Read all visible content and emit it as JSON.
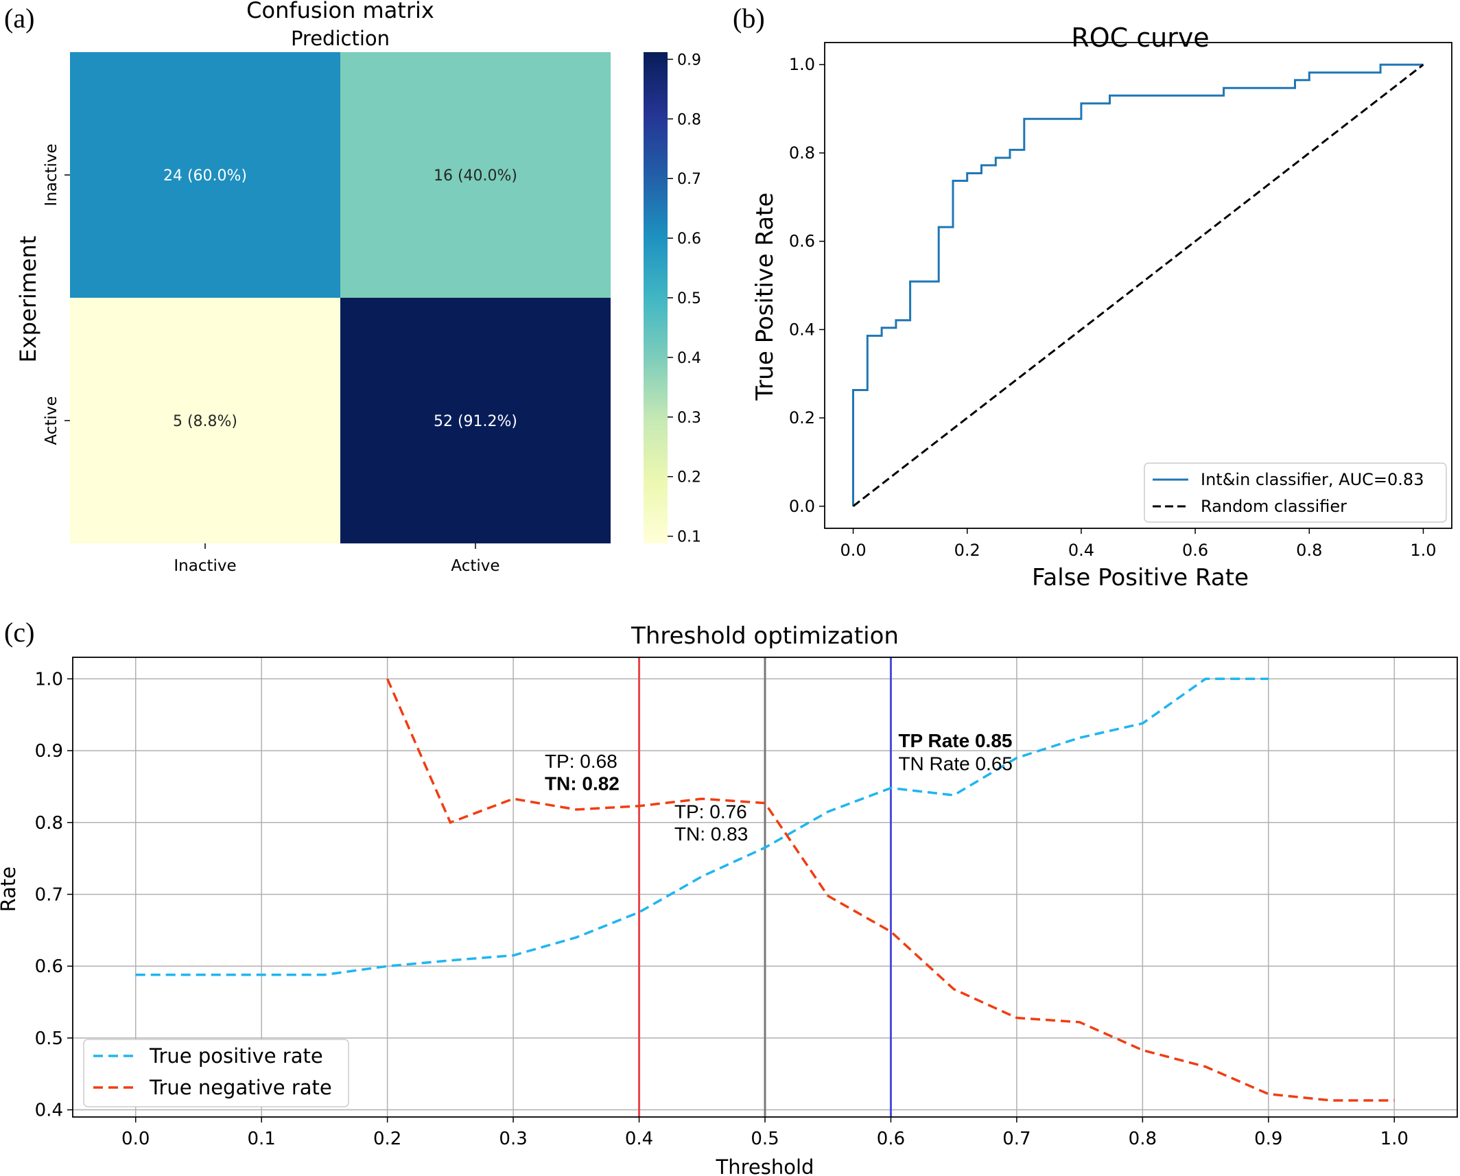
{
  "chart_data": [
    {
      "panel": "(a)",
      "type": "heatmap",
      "title": "Confusion matrix",
      "xlabel": "Prediction",
      "ylabel": "Experiment",
      "x_ticks": [
        "Inactive",
        "Active"
      ],
      "y_ticks": [
        "Inactive",
        "Active"
      ],
      "cells": [
        {
          "row": 0,
          "col": 0,
          "count": 24,
          "label": "24 (60.0%)",
          "value": 0.6,
          "color": "#1e8fbe",
          "text_color": "#ffffff"
        },
        {
          "row": 0,
          "col": 1,
          "count": 16,
          "label": "16 (40.0%)",
          "value": 0.4,
          "color": "#7ccdbb",
          "text_color": "#262626"
        },
        {
          "row": 1,
          "col": 0,
          "count": 5,
          "label": "5 (8.8%)",
          "value": 0.088,
          "color": "#ffffd9",
          "text_color": "#262626"
        },
        {
          "row": 1,
          "col": 1,
          "count": 52,
          "label": "52 (91.2%)",
          "value": 0.912,
          "color": "#081d58",
          "text_color": "#ffffff"
        }
      ],
      "colorbar": {
        "range": [
          0.088,
          0.912
        ],
        "ticks": [
          "0.1",
          "0.2",
          "0.3",
          "0.4",
          "0.5",
          "0.6",
          "0.7",
          "0.8",
          "0.9"
        ],
        "colormap": "YlGnBu",
        "stops": [
          "#ffffd9",
          "#edf8b1",
          "#c7e9b4",
          "#7fcdbb",
          "#41b6c4",
          "#1d91c0",
          "#225ea8",
          "#253494",
          "#081d58"
        ]
      }
    },
    {
      "panel": "(b)",
      "type": "line",
      "title": "ROC curve",
      "xlabel": "False Positive Rate",
      "ylabel": "True Positive Rate",
      "xlim": [
        -0.05,
        1.05
      ],
      "ylim": [
        -0.05,
        1.05
      ],
      "x_ticks": [
        0.0,
        0.2,
        0.4,
        0.6,
        0.8,
        1.0
      ],
      "y_ticks": [
        0.0,
        0.2,
        0.4,
        0.6,
        0.8,
        1.0
      ],
      "legend_position": "lower-right",
      "series": [
        {
          "name": "Int&in classifier, AUC=0.83",
          "color": "#1f77b4",
          "dash": "solid",
          "x": [
            0,
            0,
            0.025,
            0.025,
            0.05,
            0.05,
            0.075,
            0.075,
            0.1,
            0.1,
            0.15,
            0.15,
            0.175,
            0.175,
            0.2,
            0.2,
            0.225,
            0.225,
            0.25,
            0.25,
            0.275,
            0.275,
            0.3,
            0.3,
            0.4,
            0.4,
            0.45,
            0.45,
            0.65,
            0.65,
            0.775,
            0.775,
            0.8,
            0.8,
            0.925,
            0.925,
            1.0
          ],
          "y": [
            0,
            0.263,
            0.263,
            0.386,
            0.386,
            0.404,
            0.404,
            0.421,
            0.421,
            0.509,
            0.509,
            0.632,
            0.632,
            0.737,
            0.737,
            0.754,
            0.754,
            0.772,
            0.772,
            0.789,
            0.789,
            0.807,
            0.807,
            0.877,
            0.877,
            0.912,
            0.912,
            0.93,
            0.93,
            0.947,
            0.947,
            0.965,
            0.965,
            0.982,
            0.982,
            1.0,
            1.0
          ]
        },
        {
          "name": "Random classifier",
          "color": "#000000",
          "dash": "dashed",
          "x": [
            0,
            1
          ],
          "y": [
            0,
            1
          ]
        }
      ]
    },
    {
      "panel": "(c)",
      "type": "line",
      "title": "Threshold optimization",
      "xlabel": "Threshold",
      "ylabel": "Rate",
      "xlim": [
        -0.05,
        1.05
      ],
      "ylim": [
        0.39,
        1.03
      ],
      "x_ticks": [
        0.0,
        0.1,
        0.2,
        0.3,
        0.4,
        0.5,
        0.6,
        0.7,
        0.8,
        0.9,
        1.0
      ],
      "y_ticks": [
        0.4,
        0.5,
        0.6,
        0.7,
        0.8,
        0.9,
        1.0
      ],
      "grid": true,
      "legend_position": "lower-left",
      "series": [
        {
          "name": "True positive rate",
          "color": "#1fb5f0",
          "dash": "dashed",
          "x": [
            0.0,
            0.05,
            0.1,
            0.15,
            0.2,
            0.25,
            0.3,
            0.35,
            0.4,
            0.45,
            0.5,
            0.55,
            0.6,
            0.65,
            0.7,
            0.75,
            0.8,
            0.85,
            0.9
          ],
          "y": [
            0.588,
            0.588,
            0.588,
            0.588,
            0.6,
            0.608,
            0.615,
            0.64,
            0.675,
            0.725,
            0.765,
            0.815,
            0.848,
            0.838,
            0.89,
            0.918,
            0.938,
            1.0,
            1.0
          ]
        },
        {
          "name": "True negative rate",
          "color": "#f03d12",
          "dash": "dashed",
          "x": [
            0.2,
            0.25,
            0.3,
            0.35,
            0.4,
            0.45,
            0.5,
            0.55,
            0.6,
            0.65,
            0.7,
            0.75,
            0.8,
            0.85,
            0.9,
            0.95,
            1.0
          ],
          "y": [
            1.0,
            0.8,
            0.833,
            0.818,
            0.823,
            0.833,
            0.827,
            0.698,
            0.648,
            0.568,
            0.528,
            0.522,
            0.483,
            0.46,
            0.422,
            0.413,
            0.413
          ]
        }
      ],
      "vlines": [
        {
          "x": 0.4,
          "color": "#e8474b"
        },
        {
          "x": 0.5,
          "color": "#787878"
        },
        {
          "x": 0.6,
          "color": "#4b4bde"
        }
      ],
      "annotations": [
        {
          "x": 0.325,
          "y1": 0.876,
          "y2": 0.845,
          "line1": "TP: 0.68",
          "line2": "TN: 0.82",
          "bold_line": 2
        },
        {
          "x": 0.428,
          "y1": 0.806,
          "y2": 0.775,
          "line1": "TP: 0.76",
          "line2": "TN: 0.83",
          "bold_line": 0
        },
        {
          "x": 0.606,
          "y1": 0.905,
          "y2": 0.873,
          "line1": "TP Rate 0.85",
          "line2": "TN Rate 0.65",
          "bold_line": 1
        }
      ]
    }
  ],
  "panel_labels": [
    "(a)",
    "(b)",
    "(c)"
  ]
}
